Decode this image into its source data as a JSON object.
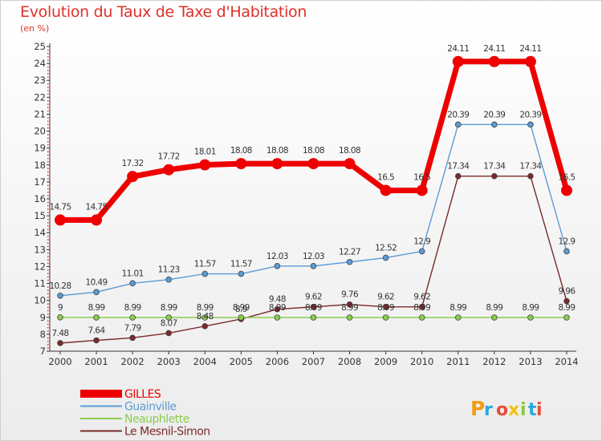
{
  "title": "Evolution du Taux de Taxe d'Habitation",
  "unit": "(en %)",
  "logo": "Proxiti",
  "chart_data": {
    "type": "line",
    "title": "Evolution du Taux de Taxe d'Habitation",
    "ylabel": "(en %)",
    "x": [
      "2000",
      "2001",
      "2002",
      "2003",
      "2004",
      "2005",
      "2006",
      "2007",
      "2008",
      "2009",
      "2010",
      "2011",
      "2012",
      "2013",
      "2014"
    ],
    "ylim": [
      7,
      25
    ],
    "yticks": [
      7,
      8,
      9,
      10,
      11,
      12,
      13,
      14,
      15,
      16,
      17,
      18,
      19,
      20,
      21,
      22,
      23,
      24,
      25
    ],
    "grid": false,
    "legend_position": "bottom-left",
    "series": [
      {
        "name": "GILLES",
        "color": "#ee0000",
        "values": [
          14.75,
          14.75,
          17.32,
          17.72,
          18.01,
          18.08,
          18.08,
          18.08,
          18.08,
          16.5,
          16.5,
          24.11,
          24.11,
          24.11,
          16.5
        ],
        "labels": [
          "14.75",
          "14.75",
          "17.32",
          "17.72",
          "18.01",
          "18.08",
          "18.08",
          "18.08",
          "18.08",
          "16.5",
          "16.5",
          "24.11",
          "24.11",
          "24.11",
          "16.5"
        ]
      },
      {
        "name": "Guainville",
        "color": "#5b9bd5",
        "values": [
          10.28,
          10.49,
          11.01,
          11.23,
          11.57,
          11.57,
          12.03,
          12.03,
          12.27,
          12.52,
          12.9,
          20.39,
          20.39,
          20.39,
          12.9
        ],
        "labels": [
          "10.28",
          "10.49",
          "11.01",
          "11.23",
          "11.57",
          "11.57",
          "12.03",
          "12.03",
          "12.27",
          "12.52",
          "12.9",
          "20.39",
          "20.39",
          "20.39",
          "12.9"
        ]
      },
      {
        "name": "Neauphlette",
        "color": "#8ccc50",
        "values": [
          9,
          8.99,
          8.99,
          8.99,
          8.99,
          8.99,
          8.99,
          8.99,
          8.99,
          8.99,
          8.99,
          8.99,
          8.99,
          8.99,
          8.99
        ],
        "labels": [
          "9",
          "8.99",
          "8.99",
          "8.99",
          "8.99",
          "8.99",
          "8.99",
          "8.99",
          "8.99",
          "8.99",
          "8.99",
          "8.99",
          "8.99",
          "8.99",
          "8.99"
        ]
      },
      {
        "name": "Le Mesnil-Simon",
        "color": "#7a2a2a",
        "values": [
          7.48,
          7.64,
          7.79,
          8.07,
          8.48,
          8.9,
          9.48,
          9.62,
          9.76,
          9.62,
          9.62,
          17.34,
          17.34,
          17.34,
          9.96
        ],
        "labels": [
          "7.48",
          "7.64",
          "7.79",
          "8.07",
          "8.48",
          "8.9",
          "9.48",
          "9.62",
          "9.76",
          "9.62",
          "9.62",
          "17.34",
          "17.34",
          "17.34",
          "9.96"
        ]
      }
    ]
  }
}
